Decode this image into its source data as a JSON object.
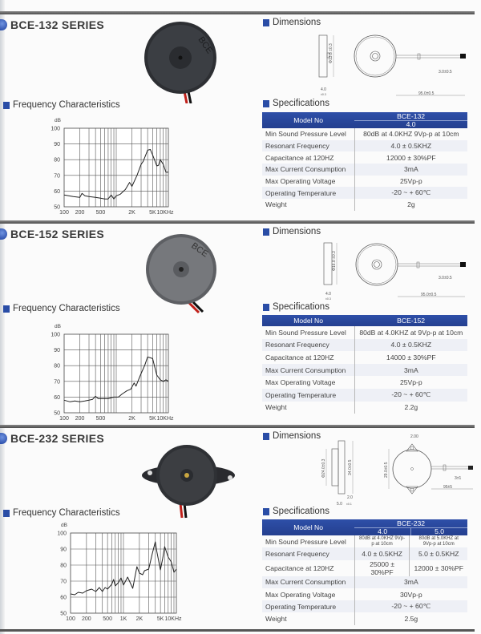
{
  "sections": [
    {
      "title": "BCE-132 SERIES",
      "freq_label": "Frequency Characteristics",
      "dims_label": "Dimensions",
      "specs_label": "Specifications",
      "dims": {
        "dia": "Φ13.8 ±0.3",
        "thick": "4.0",
        "thick_tol": "±0.3",
        "lead": "3.0±0.5",
        "length": "95.0±0.5"
      },
      "table": {
        "header_label": "Model No",
        "model": "BCE-132",
        "subs": [
          "4.0"
        ],
        "rows": [
          {
            "label": "Min Sound Pressure Level",
            "values": [
              "80dB at 4.0KHZ 9Vp-p at 10cm"
            ]
          },
          {
            "label": "Resonant Frequency",
            "values": [
              "4.0 ± 0.5KHZ"
            ]
          },
          {
            "label": "Capacitance at 120HZ",
            "values": [
              "12000 ± 30%PF"
            ]
          },
          {
            "label": "Max Current Consumption",
            "values": [
              "3mA"
            ]
          },
          {
            "label": "Max Operating Voltage",
            "values": [
              "25Vp-p"
            ]
          },
          {
            "label": "Operating Temperature",
            "values": [
              "-20 ~ + 60℃"
            ]
          },
          {
            "label": "Weight",
            "values": [
              "2g"
            ]
          }
        ]
      }
    },
    {
      "title": "BCE-152 SERIES",
      "freq_label": "Frequency Characteristics",
      "dims_label": "Dimensions",
      "specs_label": "Specifications",
      "dims": {
        "dia": "Φ16.8 ±0.3",
        "thick": "4.0",
        "thick_tol": "±0.3",
        "lead": "3.0±0.5",
        "length": "95.0±0.5"
      },
      "table": {
        "header_label": "Model No",
        "model": "BCE-152",
        "subs": [],
        "rows": [
          {
            "label": "Min Sound Pressure Level",
            "values": [
              "80dB at 4.0KHZ at 9Vp-p at 10cm"
            ]
          },
          {
            "label": "Resonant Frequency",
            "values": [
              "4.0 ± 0.5KHZ"
            ]
          },
          {
            "label": "Capacitance at 120HZ",
            "values": [
              "14000 ± 30%PF"
            ]
          },
          {
            "label": "Max Current Consumption",
            "values": [
              "3mA"
            ]
          },
          {
            "label": "Max Operating Voltage",
            "values": [
              "25Vp-p"
            ]
          },
          {
            "label": "Operating Temperature",
            "values": [
              "-20 ~ + 60℃"
            ]
          },
          {
            "label": "Weight",
            "values": [
              "2.2g"
            ]
          }
        ]
      }
    },
    {
      "title": "BCE-232 SERIES",
      "freq_label": "Frequency Characteristics",
      "dims_label": "Dimensions",
      "specs_label": "Specifications",
      "dims": {
        "dia": "Φ24.0±0.3",
        "height": "34.0±0.5",
        "body": "29.0±0.5",
        "hole": "2.00",
        "ear": "2.0",
        "thick": "5.0",
        "thick_tol": "±0.1",
        "lead": "3±1",
        "length": "95±5"
      },
      "table": {
        "header_label": "Model No",
        "model": "BCE-232",
        "subs": [
          "4.0",
          "5.0"
        ],
        "rows": [
          {
            "label": "Min Sound Pressure Level",
            "values": [
              "80dB at 4.0KHZ 9Vp-p at 10cm",
              "80dB at 5.0KHZ at 9Vp-p at 10cm"
            ],
            "small": true
          },
          {
            "label": "Resonant Frequency",
            "values": [
              "4.0 ± 0.5KHZ",
              "5.0 ± 0.5KHZ"
            ]
          },
          {
            "label": "Capacitance at 120HZ",
            "values": [
              "25000 ± 30%PF",
              "12000 ± 30%PF"
            ]
          },
          {
            "label": "Max Current Consumption",
            "values": [
              "3mA"
            ]
          },
          {
            "label": "Max Operating Voltage",
            "values": [
              "30Vp-p"
            ]
          },
          {
            "label": "Operating Temperature",
            "values": [
              "-20 ~ + 60℃"
            ]
          },
          {
            "label": "Weight",
            "values": [
              "2.5g"
            ]
          }
        ]
      }
    }
  ],
  "chart_data": [
    {
      "type": "line",
      "ylabel": "dB",
      "xscale": "log",
      "xlim": [
        100,
        10000
      ],
      "ylim": [
        50,
        100
      ],
      "grid": true,
      "yticks": [
        "50",
        "60",
        "70",
        "80",
        "90",
        "100"
      ],
      "xticks": [
        {
          "v": 100,
          "t": "100"
        },
        {
          "v": 200,
          "t": "200"
        },
        {
          "v": 500,
          "t": "500"
        },
        {
          "v": 2000,
          "t": "2K"
        },
        {
          "v": 5000,
          "t": "5K"
        },
        {
          "v": 10000,
          "t": "10KHz"
        }
      ],
      "x": [
        100,
        150,
        200,
        220,
        250,
        300,
        400,
        500,
        600,
        700,
        800,
        900,
        1000,
        1200,
        1500,
        1800,
        2000,
        2500,
        3000,
        3300,
        4000,
        4500,
        5000,
        6000,
        6500,
        7000,
        8000,
        9000,
        10000
      ],
      "y": [
        57.5,
        56.5,
        56,
        58.5,
        57,
        56.5,
        56,
        55.5,
        55,
        55,
        57.5,
        55,
        57,
        58,
        61,
        65.5,
        63,
        70,
        77,
        79,
        86,
        86.5,
        83,
        76,
        76.5,
        80,
        77,
        72,
        72
      ]
    },
    {
      "type": "line",
      "ylabel": "dB",
      "xscale": "log",
      "xlim": [
        100,
        10000
      ],
      "ylim": [
        50,
        100
      ],
      "grid": true,
      "yticks": [
        "50",
        "60",
        "70",
        "80",
        "90",
        "100"
      ],
      "xticks": [
        {
          "v": 100,
          "t": "100"
        },
        {
          "v": 200,
          "t": "200"
        },
        {
          "v": 500,
          "t": "500"
        },
        {
          "v": 2000,
          "t": "2K"
        },
        {
          "v": 5000,
          "t": "5K"
        },
        {
          "v": 10000,
          "t": "10KHz"
        }
      ],
      "x": [
        100,
        130,
        160,
        200,
        250,
        300,
        350,
        400,
        450,
        500,
        700,
        900,
        1100,
        1300,
        1600,
        1900,
        2200,
        2400,
        2600,
        3000,
        3500,
        4000,
        4500,
        5000,
        5500,
        6000,
        7000,
        8000,
        9000,
        10000
      ],
      "y": [
        58,
        57,
        57.5,
        57,
        57.5,
        58,
        58.5,
        60.5,
        59,
        59,
        59,
        60,
        60,
        62,
        64,
        65,
        69,
        67,
        70,
        75,
        80,
        85.5,
        85,
        84.5,
        79,
        74,
        71,
        70,
        71,
        70
      ]
    },
    {
      "type": "line",
      "ylabel": "dB",
      "xscale": "log",
      "xlim": [
        100,
        10000
      ],
      "ylim": [
        50,
        100
      ],
      "grid": true,
      "yticks": [
        "50",
        "60",
        "70",
        "80",
        "90",
        "100"
      ],
      "xticks": [
        {
          "v": 100,
          "t": "100"
        },
        {
          "v": 200,
          "t": "200"
        },
        {
          "v": 500,
          "t": "500"
        },
        {
          "v": 1000,
          "t": "1K"
        },
        {
          "v": 2000,
          "t": "2K"
        },
        {
          "v": 5000,
          "t": "5K"
        },
        {
          "v": 10000,
          "t": "10KHz"
        }
      ],
      "x": [
        100,
        120,
        140,
        170,
        200,
        250,
        300,
        350,
        400,
        450,
        500,
        600,
        650,
        700,
        800,
        900,
        1000,
        1200,
        1500,
        1800,
        2000,
        2300,
        2500,
        3000,
        3500,
        4000,
        4300,
        5000,
        5500,
        6000,
        7000,
        8000,
        9000,
        10000
      ],
      "y": [
        62,
        61.5,
        63,
        62.5,
        64,
        65,
        63.5,
        66,
        63.5,
        66,
        65,
        68,
        71,
        67,
        69,
        72,
        67.5,
        72.5,
        65.5,
        79,
        75,
        74,
        76.5,
        77.5,
        87,
        94.5,
        88,
        77,
        84,
        91.5,
        85,
        82,
        75.5,
        77.5
      ]
    }
  ]
}
